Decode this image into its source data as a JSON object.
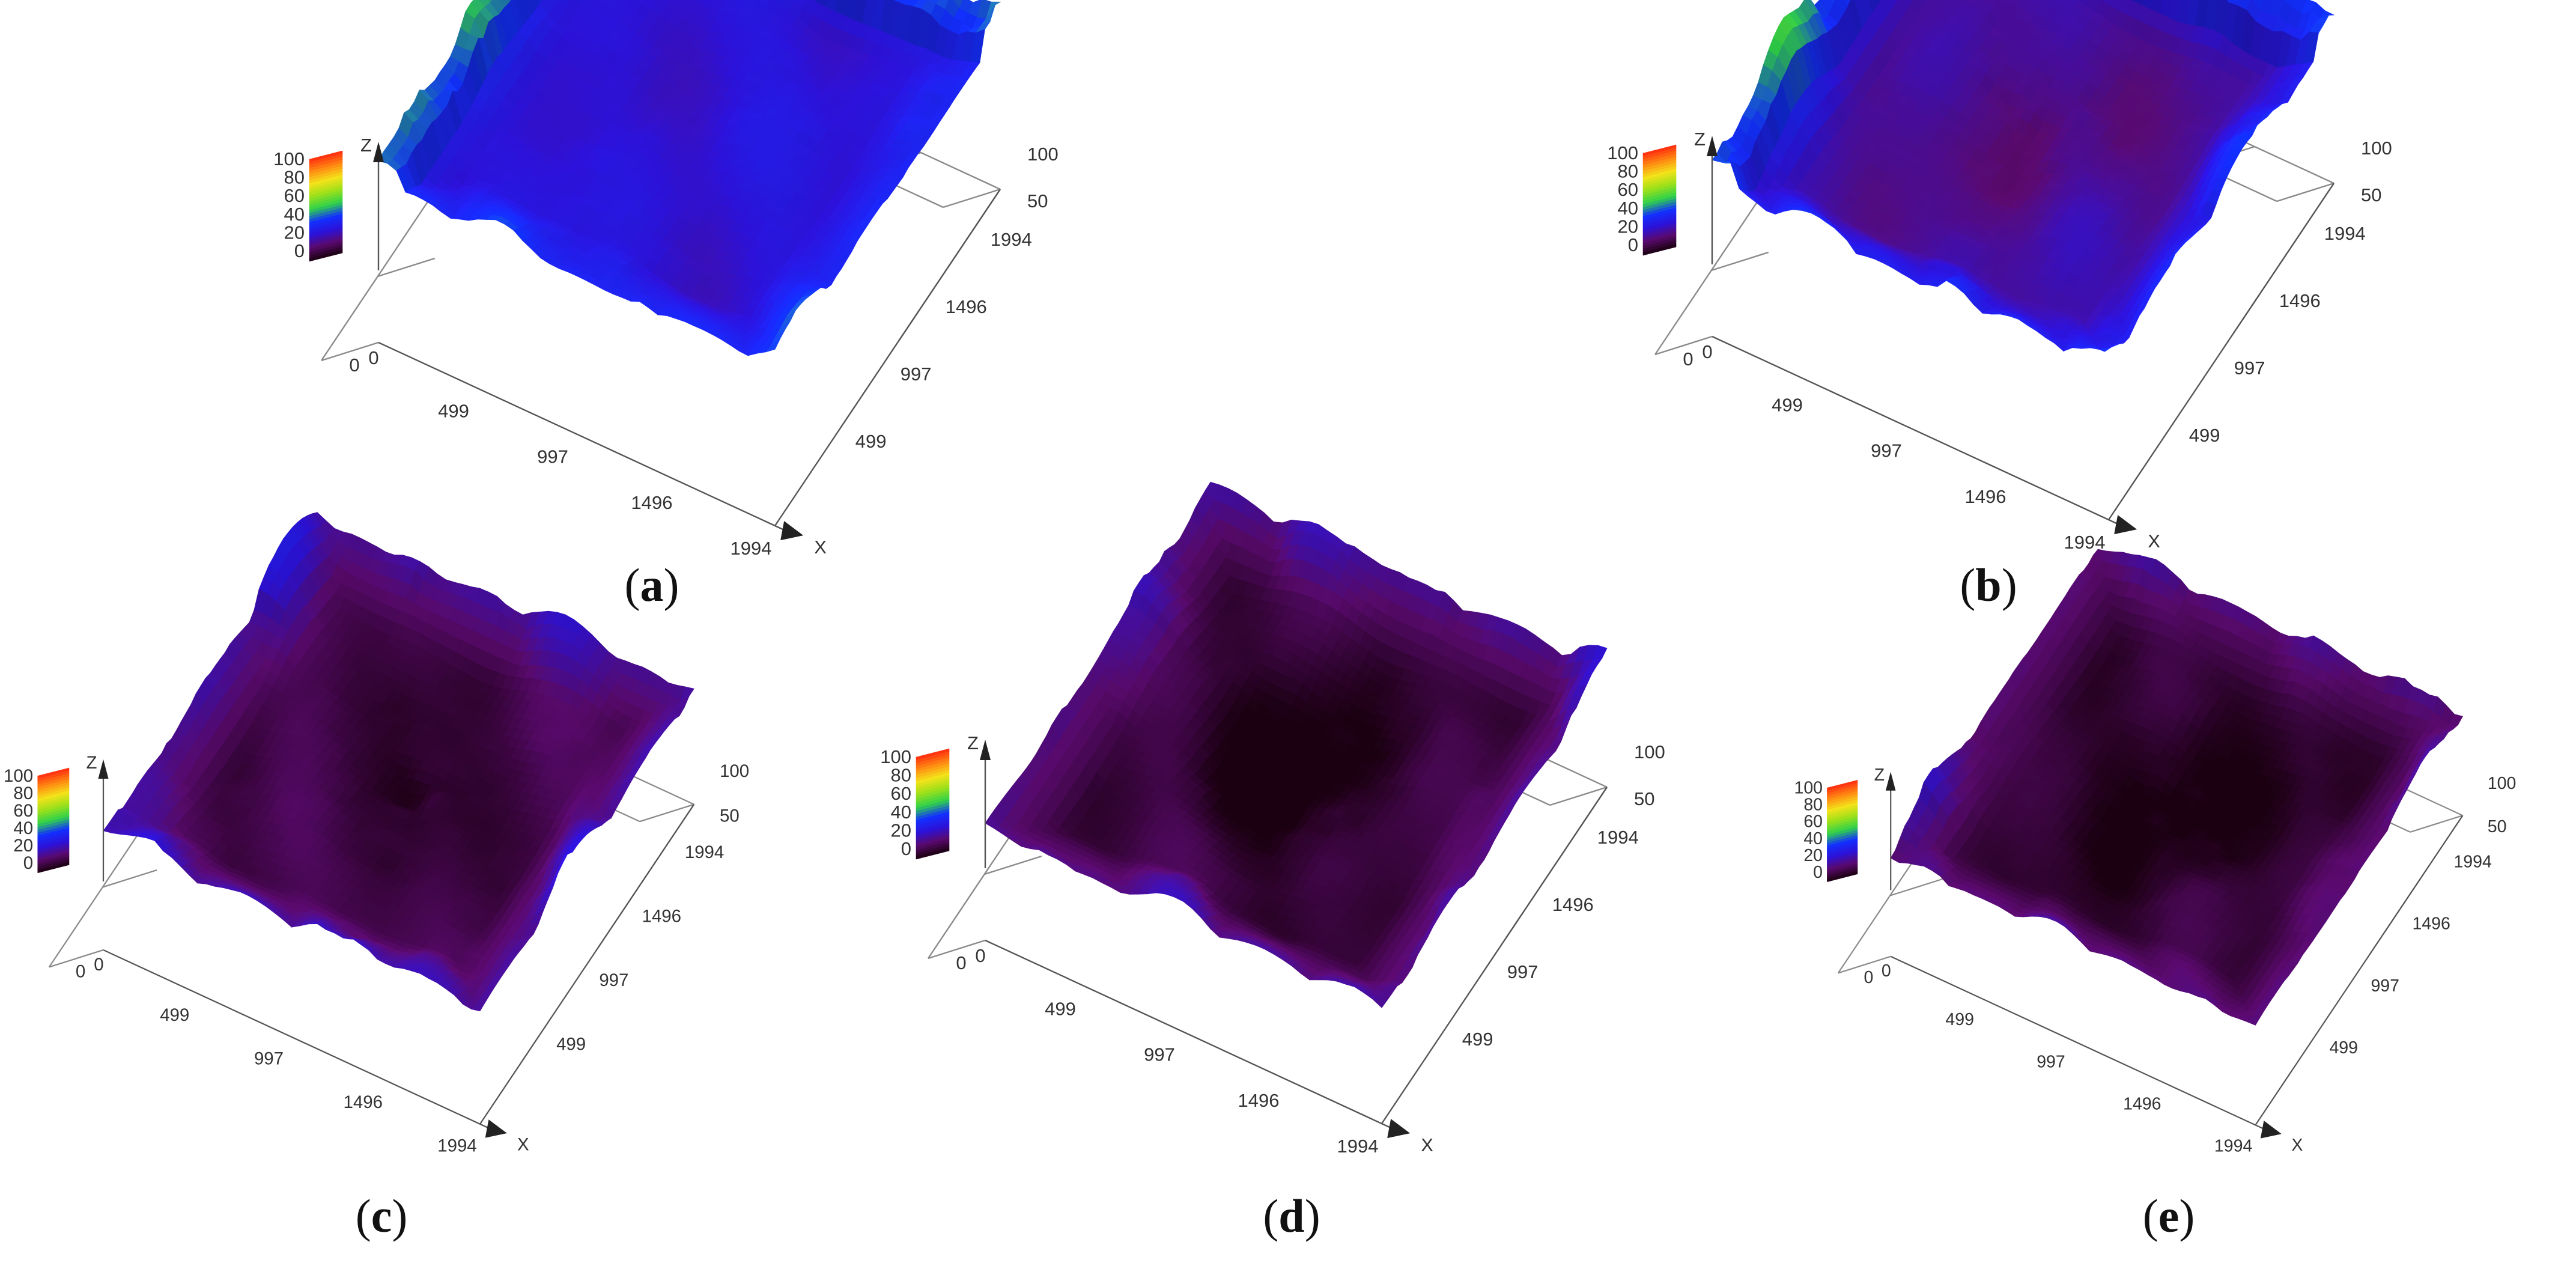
{
  "chart_data": [
    {
      "type": "surface3d",
      "caption": {
        "open": "(",
        "label": "a",
        "close": ")"
      },
      "x_ticks": [
        "0",
        "499",
        "997",
        "1496",
        "1994"
      ],
      "x_label": "X",
      "y_ticks": [
        "1994",
        "1496",
        "997",
        "499"
      ],
      "z_ticks": [
        "100",
        "50"
      ],
      "z_label": "Z",
      "colorbar_ticks": [
        "100",
        "80",
        "60",
        "40",
        "20",
        "0"
      ],
      "surface": {
        "base_level": 25,
        "edge_rise": 12,
        "dip_depth": 0,
        "rim_green": true
      }
    },
    {
      "type": "surface3d",
      "caption": {
        "open": "(",
        "label": "b",
        "close": ")"
      },
      "x_ticks": [
        "0",
        "499",
        "997",
        "1496",
        "1994"
      ],
      "x_label": "X",
      "y_ticks": [
        "1994",
        "1496",
        "997",
        "499"
      ],
      "z_ticks": [
        "100",
        "50"
      ],
      "z_label": "Z",
      "colorbar_ticks": [
        "100",
        "80",
        "60",
        "40",
        "20",
        "0"
      ],
      "surface": {
        "base_level": 18,
        "edge_rise": 18,
        "dip_depth": 6,
        "rim_green": true
      }
    },
    {
      "type": "surface3d",
      "caption": {
        "open": "(",
        "label": "c",
        "close": ")"
      },
      "x_ticks": [
        "0",
        "499",
        "997",
        "1496",
        "1994"
      ],
      "x_label": "X",
      "y_ticks": [
        "1994",
        "1496",
        "997",
        "499"
      ],
      "z_ticks": [
        "100",
        "50"
      ],
      "z_label": "Z",
      "colorbar_ticks": [
        "100",
        "80",
        "60",
        "40",
        "20",
        "0"
      ],
      "surface": {
        "base_level": 8,
        "edge_rise": 14,
        "dip_depth": 7,
        "rim_green": false
      }
    },
    {
      "type": "surface3d",
      "caption": {
        "open": "(",
        "label": "d",
        "close": ")"
      },
      "x_ticks": [
        "0",
        "499",
        "997",
        "1496",
        "1994"
      ],
      "x_label": "X",
      "y_ticks": [
        "1994",
        "1496",
        "997",
        "499"
      ],
      "z_ticks": [
        "100",
        "50"
      ],
      "z_label": "Z",
      "colorbar_ticks": [
        "100",
        "80",
        "60",
        "40",
        "20",
        "0"
      ],
      "surface": {
        "base_level": 6,
        "edge_rise": 14,
        "dip_depth": 10,
        "rim_green": false
      }
    },
    {
      "type": "surface3d",
      "caption": {
        "open": "(",
        "label": "e",
        "close": ")"
      },
      "x_ticks": [
        "0",
        "499",
        "997",
        "1496",
        "1994"
      ],
      "x_label": "X",
      "y_ticks": [
        "1994",
        "1496",
        "997",
        "499"
      ],
      "z_ticks": [
        "100",
        "50"
      ],
      "z_label": "Z",
      "colorbar_ticks": [
        "100",
        "80",
        "60",
        "40",
        "20",
        "0"
      ],
      "surface": {
        "base_level": 5,
        "edge_rise": 13,
        "dip_depth": 9,
        "rim_green": false
      }
    }
  ],
  "colorscale": [
    "#1a0010",
    "#5a0a6e",
    "#2c12d8",
    "#1230ff",
    "#2fd24a",
    "#9be01a",
    "#f3e21a",
    "#ff8a12",
    "#ff2a10"
  ]
}
